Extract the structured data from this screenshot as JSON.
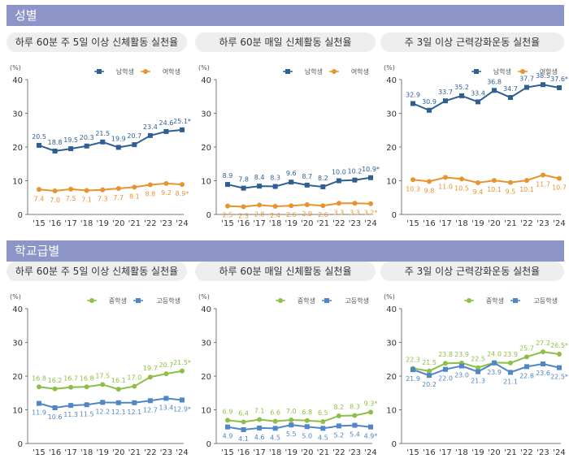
{
  "sections": [
    {
      "title": "성별"
    },
    {
      "title": "학교급별"
    }
  ],
  "chart_data": [
    {
      "type": "line",
      "section": 0,
      "panel": 0,
      "title": "하루 60분 주 5일 이상 신체활동 실천율",
      "ylabel": "(%)",
      "categories": [
        "'15",
        "'16",
        "'17",
        "'18",
        "'19",
        "'20",
        "'21",
        "'22",
        "'23",
        "'24"
      ],
      "ylim": [
        0,
        40
      ],
      "yticks": [
        "0",
        "10",
        "20",
        "30",
        "40"
      ],
      "series": [
        {
          "name": "남학생",
          "color": "#2e5f93",
          "marker": "square",
          "values": [
            20.5,
            18.8,
            19.5,
            20.3,
            21.5,
            19.9,
            20.7,
            23.4,
            24.6,
            25.1
          ],
          "labels": [
            "20.5",
            "18.8",
            "19.5",
            "20.3",
            "21.5",
            "19.9",
            "20.7",
            "23.4",
            "24.6",
            "25.1*"
          ]
        },
        {
          "name": "여학생",
          "color": "#e8932e",
          "marker": "circle",
          "values": [
            7.4,
            7.0,
            7.5,
            7.1,
            7.3,
            7.7,
            8.1,
            8.8,
            9.2,
            8.9
          ],
          "labels": [
            "7.4",
            "7.0",
            "7.5",
            "7.1",
            "7.3",
            "7.7",
            "8.1",
            "8.8",
            "9.2",
            "8.9*"
          ]
        }
      ]
    },
    {
      "type": "line",
      "section": 0,
      "panel": 1,
      "title": "하루 60분 매일 신체활동 실천율",
      "ylabel": "(%)",
      "categories": [
        "'15",
        "'16",
        "'17",
        "'18",
        "'19",
        "'20",
        "'21",
        "'22",
        "'23",
        "'24"
      ],
      "ylim": [
        0,
        40
      ],
      "yticks": [
        "0",
        "10",
        "20",
        "30",
        "40"
      ],
      "series": [
        {
          "name": "남학생",
          "color": "#2e5f93",
          "marker": "square",
          "values": [
            8.9,
            7.8,
            8.4,
            8.3,
            9.6,
            8.7,
            8.2,
            10.0,
            10.2,
            10.9
          ],
          "labels": [
            "8.9",
            "7.8",
            "8.4",
            "8.3",
            "9.6",
            "8.7",
            "8.2",
            "10.0",
            "10.2",
            "10.9*"
          ]
        },
        {
          "name": "여학생",
          "color": "#e8932e",
          "marker": "circle",
          "values": [
            2.5,
            2.3,
            2.8,
            2.4,
            2.6,
            2.9,
            2.6,
            3.3,
            3.3,
            3.2
          ],
          "labels": [
            "2.5",
            "2.3",
            "2.8",
            "2.4",
            "2.6",
            "2.9",
            "2.6",
            "3.3",
            "3.3",
            "3.2*"
          ]
        }
      ]
    },
    {
      "type": "line",
      "section": 0,
      "panel": 2,
      "title": "주 3일 이상 근력강화운동 실천율",
      "ylabel": "(%)",
      "categories": [
        "'15",
        "'16",
        "'17",
        "'18",
        "'19",
        "'20",
        "'21",
        "'22",
        "'23",
        "'24"
      ],
      "ylim": [
        0,
        40
      ],
      "yticks": [
        "0",
        "10",
        "20",
        "30",
        "40"
      ],
      "series": [
        {
          "name": "남학생",
          "color": "#2e5f93",
          "marker": "square",
          "values": [
            32.9,
            30.9,
            33.7,
            35.2,
            33.4,
            36.8,
            34.7,
            37.7,
            38.5,
            37.6
          ],
          "labels": [
            "32.9",
            "30.9",
            "33.7",
            "35.2",
            "33.4",
            "36.8",
            "34.7",
            "37.7",
            "38.5",
            "37.6*"
          ]
        },
        {
          "name": "여학생",
          "color": "#e8932e",
          "marker": "circle",
          "values": [
            10.3,
            9.8,
            11.0,
            10.5,
            9.4,
            10.1,
            9.5,
            10.1,
            11.7,
            10.7
          ],
          "labels": [
            "10.3",
            "9.8",
            "11.0",
            "10.5",
            "9.4",
            "10.1",
            "9.5",
            "10.1",
            "11.7",
            "10.7"
          ]
        }
      ]
    },
    {
      "type": "line",
      "section": 1,
      "panel": 0,
      "title": "하루 60분 주 5일 이상 신체활동 실천율",
      "ylabel": "(%)",
      "categories": [
        "'15",
        "'16",
        "'17",
        "'18",
        "'19",
        "'20",
        "'21",
        "'22",
        "'23",
        "'24"
      ],
      "ylim": [
        0,
        40
      ],
      "yticks": [
        "0",
        "10",
        "20",
        "30",
        "40"
      ],
      "series": [
        {
          "name": "중학생",
          "color": "#8dbf45",
          "marker": "circle",
          "values": [
            16.8,
            16.2,
            16.7,
            16.8,
            17.5,
            16.1,
            17.0,
            19.7,
            20.7,
            21.5
          ],
          "labels": [
            "16.8",
            "16.2",
            "16.7",
            "16.8",
            "17.5",
            "16.1",
            "17.0",
            "19.7",
            "20.7",
            "21.5*"
          ]
        },
        {
          "name": "고등학생",
          "color": "#4f86c6",
          "marker": "square",
          "values": [
            11.9,
            10.6,
            11.3,
            11.5,
            12.2,
            12.1,
            12.1,
            12.7,
            13.4,
            12.9
          ],
          "labels": [
            "11.9",
            "10.6",
            "11.3",
            "11.5",
            "12.2",
            "12.1",
            "12.1",
            "12.7",
            "13.4",
            "12.9*"
          ]
        }
      ]
    },
    {
      "type": "line",
      "section": 1,
      "panel": 1,
      "title": "하루 60분 매일 신체활동 실천율",
      "ylabel": "(%)",
      "categories": [
        "'15",
        "'16",
        "'17",
        "'18",
        "'19",
        "'20",
        "'21",
        "'22",
        "'23",
        "'24"
      ],
      "ylim": [
        0,
        40
      ],
      "yticks": [
        "0",
        "10",
        "20",
        "30",
        "40"
      ],
      "series": [
        {
          "name": "중학생",
          "color": "#8dbf45",
          "marker": "circle",
          "values": [
            6.9,
            6.4,
            7.1,
            6.6,
            7.0,
            6.8,
            6.5,
            8.2,
            8.3,
            9.3
          ],
          "labels": [
            "6.9",
            "6.4",
            "7.1",
            "6.6",
            "7.0",
            "6.8",
            "6.5",
            "8.2",
            "8.3",
            "9.3*"
          ]
        },
        {
          "name": "고등학생",
          "color": "#4f86c6",
          "marker": "square",
          "values": [
            4.9,
            4.1,
            4.6,
            4.5,
            5.5,
            5.0,
            4.5,
            5.2,
            5.4,
            4.9
          ],
          "labels": [
            "4.9",
            "4.1",
            "4.6",
            "4.5",
            "5.5",
            "5.0",
            "4.5",
            "5.2",
            "5.4",
            "4.9*"
          ]
        }
      ]
    },
    {
      "type": "line",
      "section": 1,
      "panel": 2,
      "title": "주 3일 이상 근력강화운동 실천율",
      "ylabel": "(%)",
      "categories": [
        "'15",
        "'16",
        "'17",
        "'18",
        "'19",
        "'20",
        "'21",
        "'22",
        "'23",
        "'24"
      ],
      "ylim": [
        0,
        40
      ],
      "yticks": [
        "0",
        "10",
        "20",
        "30",
        "40"
      ],
      "series": [
        {
          "name": "중학생",
          "color": "#8dbf45",
          "marker": "circle",
          "values": [
            22.3,
            21.5,
            23.8,
            23.9,
            22.5,
            24.0,
            23.9,
            25.7,
            27.2,
            26.5
          ],
          "labels": [
            "22.3",
            "21.5",
            "23.8",
            "23.9",
            "22.5",
            "24.0",
            "23.9",
            "25.7",
            "27.2",
            "26.5*"
          ]
        },
        {
          "name": "고등학생",
          "color": "#4f86c6",
          "marker": "square",
          "values": [
            21.9,
            20.2,
            22.0,
            23.0,
            21.3,
            23.9,
            21.1,
            22.8,
            23.6,
            22.5
          ],
          "labels": [
            "21.9",
            "20.2",
            "22.0",
            "23.0",
            "21.3",
            "23.9",
            "21.1",
            "22.8",
            "23.6",
            "22.5*"
          ]
        }
      ]
    }
  ]
}
